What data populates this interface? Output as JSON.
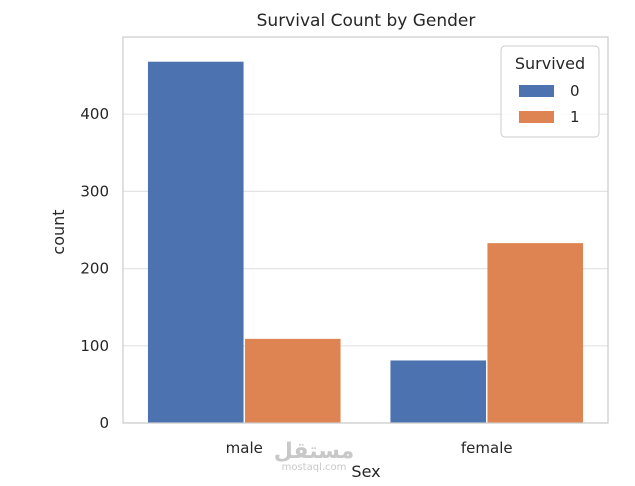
{
  "chart_data": {
    "type": "bar",
    "title": "Survival Count by Gender",
    "xlabel": "Sex",
    "ylabel": "count",
    "categories": [
      "male",
      "female"
    ],
    "series": [
      {
        "name": "0",
        "values": [
          468,
          81
        ],
        "color": "#4c72b0"
      },
      {
        "name": "1",
        "values": [
          109,
          233
        ],
        "color": "#dd8452"
      }
    ],
    "ylim": [
      0,
      500
    ],
    "yticks": [
      0,
      100,
      200,
      300,
      400
    ],
    "grid": true,
    "legend": {
      "title": "Survived",
      "placement": "top-right"
    }
  },
  "watermark": {
    "arabic": "مستقل",
    "latin": "mostaql.com"
  }
}
